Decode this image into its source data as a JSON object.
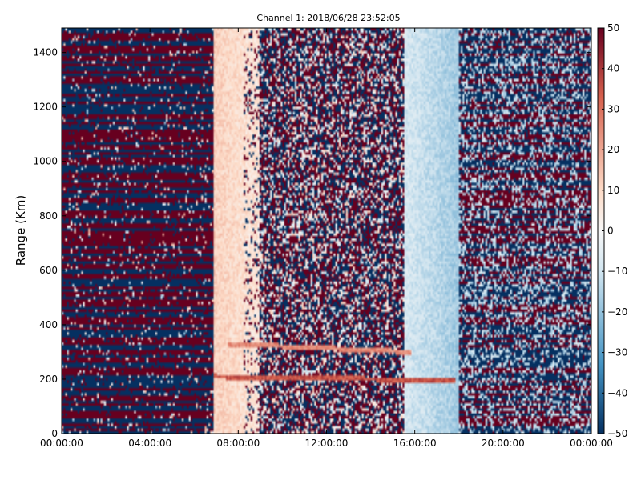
{
  "chart_data": {
    "type": "heatmap",
    "title": "Channel 1: 2018/06/28 23:52:05",
    "xlabel": "",
    "ylabel": "Range (Km)",
    "x_ticks": [
      "00:00:00",
      "04:00:00",
      "08:00:00",
      "12:00:00",
      "16:00:00",
      "20:00:00",
      "00:00:00"
    ],
    "xlim_hours": [
      0,
      24
    ],
    "y_ticks": [
      0,
      200,
      400,
      600,
      800,
      1000,
      1200,
      1400
    ],
    "ylim": [
      0,
      1490
    ],
    "colorbar": {
      "ticks": [
        50,
        40,
        30,
        20,
        10,
        0,
        -10,
        -20,
        -30,
        -40,
        -50
      ],
      "range": [
        -50,
        50
      ],
      "colormap": "RdBu_r",
      "colors": {
        "low": "#053061",
        "mid_low": "#4393c3",
        "light_low": "#d1e5f0",
        "zero": "#f7f7f7",
        "light_high": "#fddbc7",
        "mid_high": "#d6604d",
        "high": "#67001f"
      }
    },
    "regions": [
      {
        "from_hour": 0.0,
        "to_hour": 6.9,
        "pattern": "saturated alternating ±50 horizontal stripes"
      },
      {
        "from_hour": 6.9,
        "to_hour": 9.0,
        "pattern": "smooth light red, roughly +5 to +15"
      },
      {
        "from_hour": 9.0,
        "to_hour": 15.5,
        "pattern": "noisy scatter, mostly saturated ±50 speckle"
      },
      {
        "from_hour": 15.5,
        "to_hour": 18.0,
        "pattern": "smooth light blue, roughly -5 to -20"
      },
      {
        "from_hour": 18.0,
        "to_hour": 24.0,
        "pattern": "striped ±50 with light blue background"
      }
    ],
    "features": [
      {
        "kind": "band",
        "from_hour": 6.9,
        "to_hour": 17.8,
        "range_km_start": 210,
        "range_km_end": 195,
        "value": 35
      },
      {
        "kind": "band",
        "from_hour": 7.5,
        "to_hour": 15.8,
        "range_km_start": 330,
        "range_km_end": 300,
        "value": 25
      }
    ]
  }
}
